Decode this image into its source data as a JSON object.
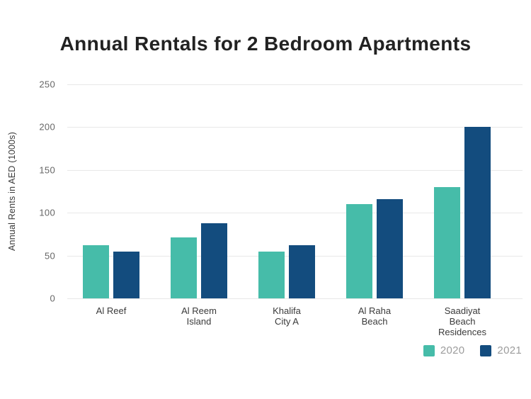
{
  "chart_data": {
    "type": "bar",
    "title": "Annual Rentals for 2 Bedroom Apartments",
    "xlabel": "",
    "ylabel": "Annual Rents in AED (1000s)",
    "categories": [
      "Al Reef",
      "Al Reem Island",
      "Khalifa City A",
      "Al Raha Beach",
      "Saadiyat Beach Residences"
    ],
    "category_label_lines": [
      [
        "Al Reef"
      ],
      [
        "Al Reem",
        "Island"
      ],
      [
        "Khalifa",
        "City A"
      ],
      [
        "Al Raha",
        "Beach"
      ],
      [
        "Saadiyat",
        "Beach",
        "Residences"
      ]
    ],
    "series": [
      {
        "name": "2020",
        "color": "#46bca9",
        "values": [
          62,
          71,
          55,
          110,
          130
        ]
      },
      {
        "name": "2021",
        "color": "#134c7e",
        "values": [
          55,
          88,
          62,
          116,
          200
        ]
      }
    ],
    "yticks": [
      0,
      50,
      100,
      150,
      200,
      250
    ],
    "ylim": [
      0,
      250
    ],
    "grid": true,
    "legend_position": "bottom-right"
  },
  "colors": {
    "background": "#ffffff",
    "gridline": "#e8e8e8",
    "title_text": "#222222",
    "tick_text": "#666666",
    "axis_title_text": "#3a3a3a",
    "legend_text": "#9c9c9c",
    "series_2020": "#46bca9",
    "series_2021": "#134c7e"
  }
}
